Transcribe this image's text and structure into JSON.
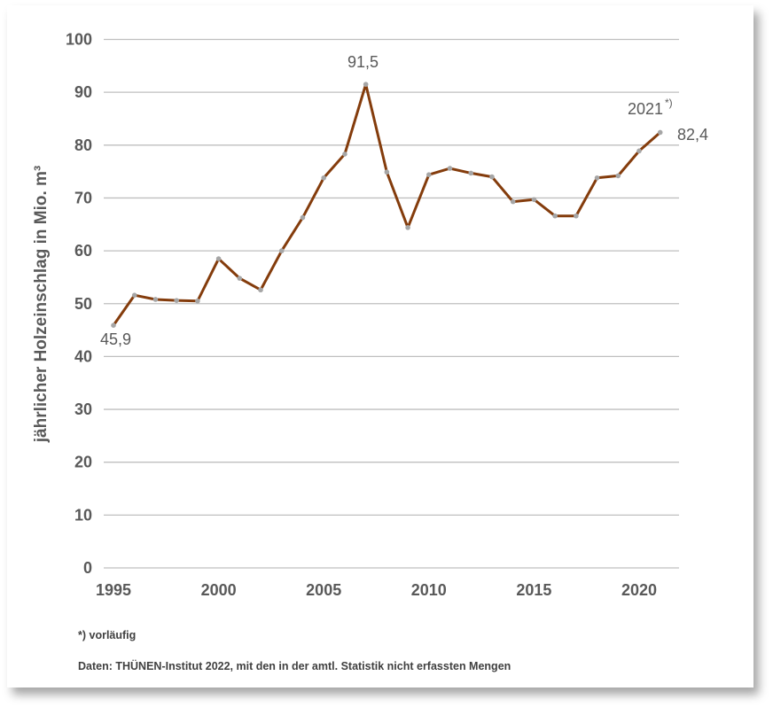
{
  "chart_data": {
    "type": "line",
    "ylabel": "jährlicher Holzeinschlag in Mio. m³",
    "xlabel": "",
    "ylim": [
      0,
      100
    ],
    "xlim": [
      1995,
      2021
    ],
    "y_ticks": [
      0,
      10,
      20,
      30,
      40,
      50,
      60,
      70,
      80,
      90,
      100
    ],
    "x_ticks": [
      1995,
      2000,
      2005,
      2010,
      2015,
      2020
    ],
    "grid": "horizontal",
    "line_color": "#843C0C",
    "marker_color": "#A6A6A6",
    "x": [
      1995,
      1996,
      1997,
      1998,
      1999,
      2000,
      2001,
      2002,
      2003,
      2004,
      2005,
      2006,
      2007,
      2008,
      2009,
      2010,
      2011,
      2012,
      2013,
      2014,
      2015,
      2016,
      2017,
      2018,
      2019,
      2020,
      2021
    ],
    "values": [
      45.9,
      51.6,
      50.8,
      50.6,
      50.5,
      58.5,
      54.8,
      52.6,
      60.0,
      66.3,
      73.8,
      78.3,
      91.5,
      74.9,
      64.4,
      74.4,
      75.6,
      74.7,
      74.0,
      69.3,
      69.7,
      66.6,
      66.6,
      73.8,
      74.2,
      78.9,
      82.4
    ],
    "annotations": {
      "first": "45,9",
      "peak": "91,5",
      "last": "82,4",
      "last_year": "2021",
      "last_year_mark": "*)"
    }
  },
  "footnote": "*) vorläufig",
  "source": "Daten: THÜNEN-Institut 2022, mit den in der amtl. Statistik nicht erfassten Mengen"
}
